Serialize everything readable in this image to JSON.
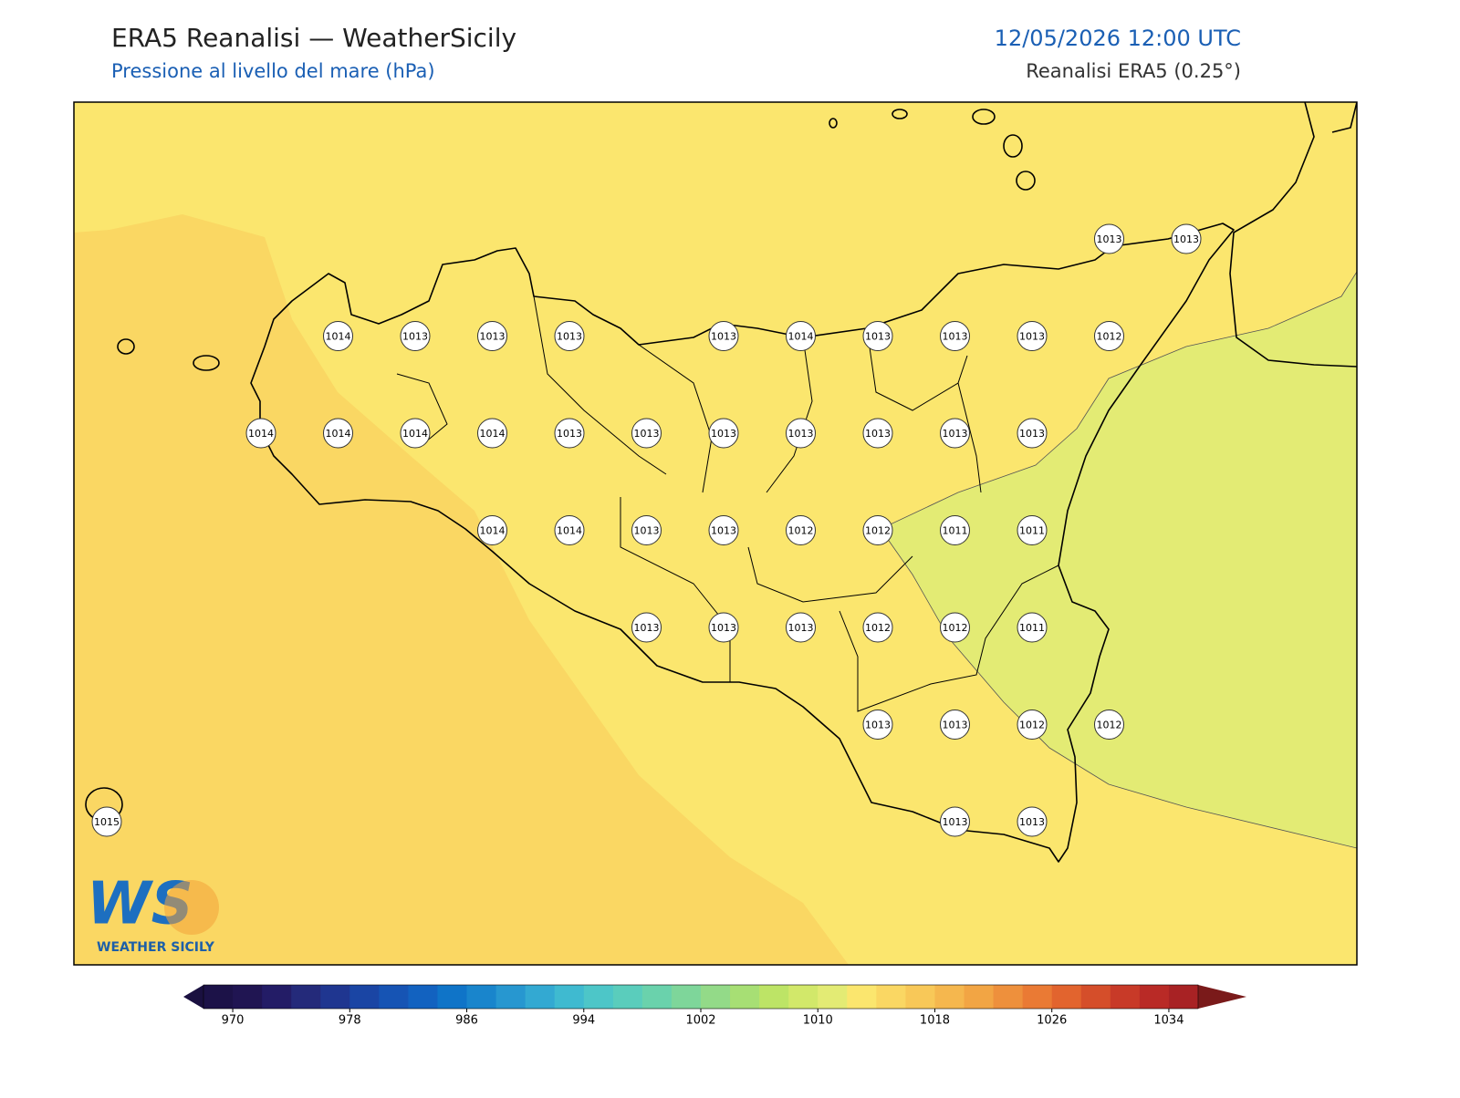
{
  "header": {
    "title": "ERA5 Reanalisi — WeatherSicily",
    "subtitle": "Pressione al livello del mare (hPa)",
    "datetime": "12/05/2026 12:00 UTC",
    "source": "Reanalisi ERA5 (0.25°)"
  },
  "map": {
    "stations": [
      1013,
      1013,
      1014,
      1013,
      1013,
      1013,
      1013,
      1014,
      1013,
      1013,
      1013,
      1012,
      1014,
      1014,
      1014,
      1014,
      1013,
      1013,
      1013,
      1013,
      1013,
      1013,
      1013,
      1014,
      1014,
      1013,
      1013,
      1012,
      1012,
      1011,
      1011,
      1013,
      1013,
      1013,
      1012,
      1012,
      1011,
      1013,
      1013,
      1012,
      1012,
      1015,
      1013,
      1013
    ],
    "fill_colors": {
      "background": 22,
      "west": 23,
      "east": 21
    }
  },
  "colorbar": {
    "lim": [
      968,
      1036
    ],
    "ticks": [
      970,
      978,
      986,
      994,
      1002,
      1010,
      1018,
      1026,
      1034
    ],
    "colors": [
      "#1c1248",
      "#201552",
      "#231c66",
      "#242a7a",
      "#1f3690",
      "#1a45a4",
      "#1654b4",
      "#1262c0",
      "#0f74c8",
      "#1985cc",
      "#2797d0",
      "#33a9d2",
      "#3fbad0",
      "#4dc6c8",
      "#5acdbc",
      "#6ad2ac",
      "#7ed69a",
      "#93da88",
      "#a7df74",
      "#bde466",
      "#d2e86a",
      "#e3eb74",
      "#fbe66e",
      "#fad763",
      "#f8c858",
      "#f5b74e",
      "#f2a544",
      "#ee903c",
      "#ea7a34",
      "#e2642e",
      "#d54e2a",
      "#c83a28",
      "#b92a26",
      "#a82224"
    ],
    "extend_colors": [
      "#1a1040",
      "#7a1a1a"
    ]
  },
  "logo": {
    "mark": "WS",
    "text": "WEATHER SICILY"
  }
}
